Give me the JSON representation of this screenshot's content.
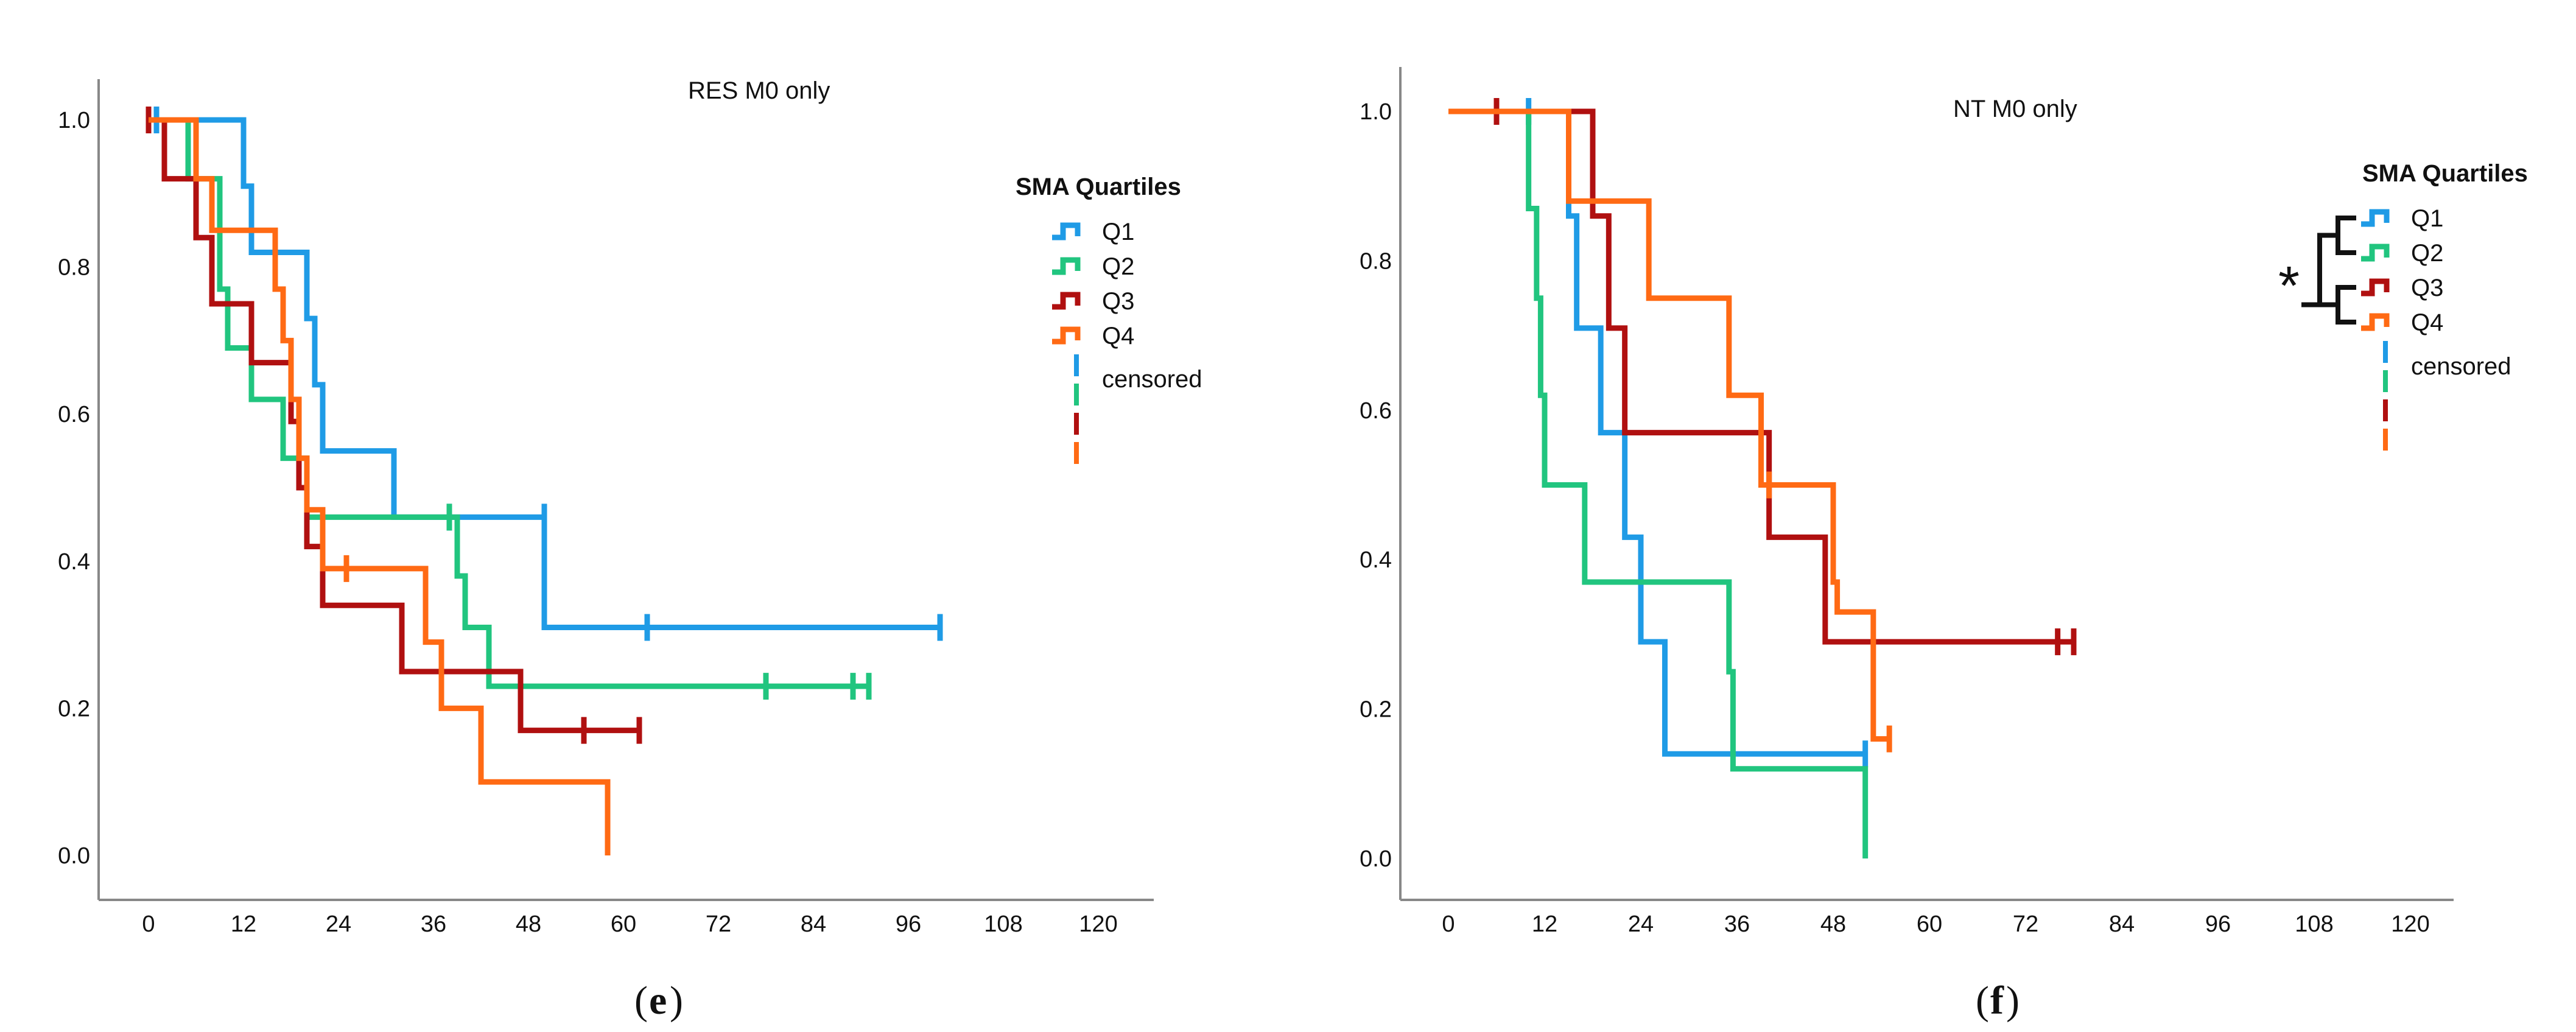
{
  "colors": {
    "Q1": "#1f9be6",
    "Q2": "#21c57f",
    "Q3": "#b01010",
    "Q4": "#ff6a14",
    "axis": "#888888",
    "bracket": "#111111"
  },
  "chart_data": [
    {
      "type": "line",
      "subtype": "kaplan-meier step",
      "title": "RES M0 only",
      "caption_letter": "e",
      "legend_title": "SMA Quartiles",
      "legend_labels": [
        "Q1",
        "Q2",
        "Q3",
        "Q4"
      ],
      "censored_label": "censored",
      "xticks": [
        0,
        12,
        24,
        36,
        48,
        60,
        72,
        84,
        96,
        108,
        120
      ],
      "yticks": [
        "0.0",
        "0.2",
        "0.4",
        "0.6",
        "0.8",
        "1.0"
      ],
      "xlim": [
        -5,
        125
      ],
      "ylim": [
        -0.05,
        1.05
      ],
      "grid": false,
      "legend_position": "right",
      "series": [
        {
          "name": "Q1",
          "steps": [
            [
              0,
              1.0
            ],
            [
              12,
              0.91
            ],
            [
              13,
              0.82
            ],
            [
              20,
              0.73
            ],
            [
              21,
              0.64
            ],
            [
              22,
              0.55
            ],
            [
              31,
              0.46
            ],
            [
              50,
              0.31
            ],
            [
              100,
              0.31
            ]
          ],
          "censored": [
            [
              1,
              1.0
            ],
            [
              38,
              0.46
            ],
            [
              50,
              0.46
            ],
            [
              63,
              0.31
            ],
            [
              100,
              0.31
            ]
          ]
        },
        {
          "name": "Q2",
          "steps": [
            [
              0,
              1.0
            ],
            [
              5,
              0.92
            ],
            [
              9,
              0.77
            ],
            [
              10,
              0.69
            ],
            [
              13,
              0.62
            ],
            [
              17,
              0.54
            ],
            [
              20,
              0.46
            ],
            [
              39,
              0.38
            ],
            [
              40,
              0.31
            ],
            [
              43,
              0.23
            ],
            [
              91,
              0.23
            ]
          ],
          "censored": [
            [
              38,
              0.46
            ],
            [
              78,
              0.23
            ],
            [
              89,
              0.23
            ],
            [
              91,
              0.23
            ]
          ]
        },
        {
          "name": "Q3",
          "steps": [
            [
              0,
              1.0
            ],
            [
              2,
              0.92
            ],
            [
              6,
              0.84
            ],
            [
              8,
              0.75
            ],
            [
              13,
              0.67
            ],
            [
              18,
              0.59
            ],
            [
              19,
              0.5
            ],
            [
              20,
              0.42
            ],
            [
              22,
              0.34
            ],
            [
              32,
              0.25
            ],
            [
              47,
              0.17
            ],
            [
              62,
              0.17
            ]
          ],
          "censored": [
            [
              0,
              1.0
            ],
            [
              55,
              0.17
            ],
            [
              62,
              0.17
            ]
          ]
        },
        {
          "name": "Q4",
          "steps": [
            [
              0,
              1.0
            ],
            [
              6,
              0.92
            ],
            [
              8,
              0.85
            ],
            [
              16,
              0.77
            ],
            [
              17,
              0.7
            ],
            [
              18,
              0.62
            ],
            [
              19,
              0.54
            ],
            [
              20,
              0.47
            ],
            [
              22,
              0.39
            ],
            [
              35,
              0.29
            ],
            [
              37,
              0.2
            ],
            [
              42,
              0.1
            ],
            [
              58,
              0.0
            ]
          ],
          "censored": [
            [
              25,
              0.39
            ]
          ]
        }
      ]
    },
    {
      "type": "line",
      "subtype": "kaplan-meier step",
      "title": "NT M0 only",
      "caption_letter": "f",
      "legend_title": "SMA Quartiles",
      "legend_labels": [
        "Q1",
        "Q2",
        "Q3",
        "Q4"
      ],
      "censored_label": "censored",
      "significance_marker": "*",
      "xticks": [
        0,
        12,
        24,
        36,
        48,
        60,
        72,
        84,
        96,
        108,
        120
      ],
      "yticks": [
        "0.0",
        "0.2",
        "0.4",
        "0.6",
        "0.8",
        "1.0"
      ],
      "xlim": [
        -5,
        125
      ],
      "ylim": [
        -0.05,
        1.05
      ],
      "grid": false,
      "legend_position": "right",
      "series": [
        {
          "name": "Q1",
          "steps": [
            [
              0,
              1.0
            ],
            [
              15,
              0.86
            ],
            [
              16,
              0.71
            ],
            [
              19,
              0.57
            ],
            [
              22,
              0.43
            ],
            [
              24,
              0.29
            ],
            [
              27,
              0.14
            ],
            [
              52,
              0.14
            ]
          ],
          "censored": [
            [
              10,
              1.0
            ],
            [
              52,
              0.14
            ]
          ]
        },
        {
          "name": "Q2",
          "steps": [
            [
              0,
              1.0
            ],
            [
              10,
              0.87
            ],
            [
              11,
              0.75
            ],
            [
              11.5,
              0.62
            ],
            [
              12,
              0.5
            ],
            [
              17,
              0.37
            ],
            [
              35,
              0.25
            ],
            [
              35.5,
              0.12
            ],
            [
              52,
              0.12
            ],
            [
              52,
              0.0
            ]
          ],
          "censored": []
        },
        {
          "name": "Q3",
          "steps": [
            [
              0,
              1.0
            ],
            [
              18,
              0.86
            ],
            [
              20,
              0.71
            ],
            [
              22,
              0.57
            ],
            [
              40,
              0.43
            ],
            [
              47,
              0.29
            ],
            [
              78,
              0.29
            ]
          ],
          "censored": [
            [
              6,
              1.0
            ],
            [
              76,
              0.29
            ],
            [
              78,
              0.29
            ]
          ]
        },
        {
          "name": "Q4",
          "steps": [
            [
              0,
              1.0
            ],
            [
              15,
              0.88
            ],
            [
              25,
              0.75
            ],
            [
              35,
              0.62
            ],
            [
              39,
              0.5
            ],
            [
              48,
              0.37
            ],
            [
              48.5,
              0.33
            ],
            [
              53,
              0.16
            ],
            [
              55,
              0.16
            ]
          ],
          "censored": [
            [
              40,
              0.5
            ],
            [
              55,
              0.16
            ]
          ]
        }
      ]
    }
  ]
}
